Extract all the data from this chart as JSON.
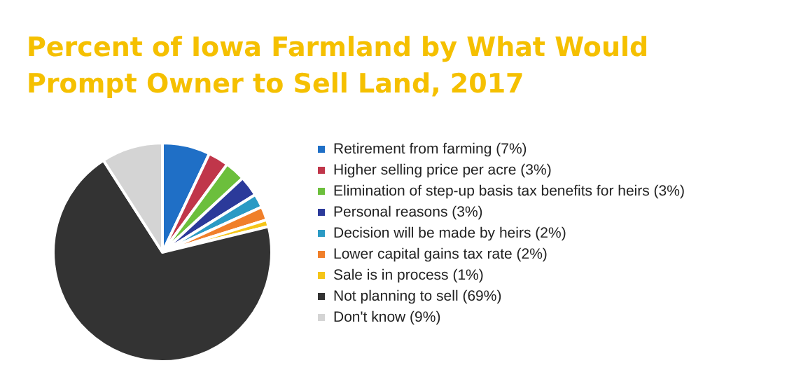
{
  "chart_data": {
    "type": "pie",
    "title": "Percent of Iowa Farmland by What Would Prompt Owner to Sell Land, 2017",
    "categories": [
      "Retirement from farming (7%)",
      "Higher selling price per acre (3%)",
      "Elimination of step-up basis tax benefits for heirs (3%)",
      "Personal reasons (3%)",
      "Decision will be made by heirs (2%)",
      "Lower capital gains tax rate (2%)",
      "Sale is in process (1%)",
      "Not planning to sell (69%)",
      "Don't know (9%)"
    ],
    "values": [
      7,
      3,
      3,
      3,
      2,
      2,
      1,
      69,
      9
    ],
    "colors": [
      "#1f6fc6",
      "#c0364a",
      "#6cbf3c",
      "#2b3a9a",
      "#2b9ac4",
      "#f07f2a",
      "#f5c518",
      "#333333",
      "#d4d4d4"
    ],
    "legend": "right"
  }
}
